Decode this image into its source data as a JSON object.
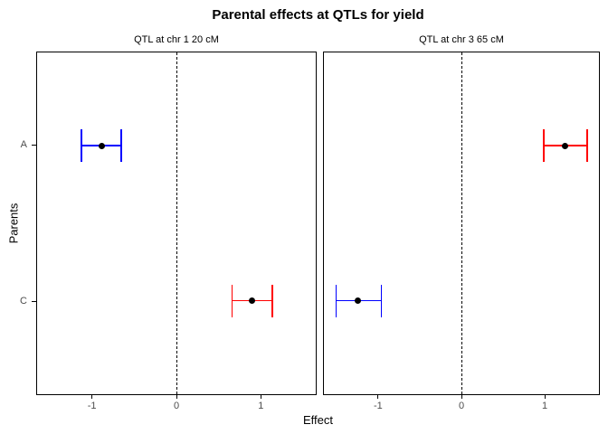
{
  "chart_data": {
    "type": "errorbar",
    "title": "Parental effects at QTLs for yield",
    "xlabel": "Effect",
    "ylabel": "Parents",
    "xlim": [
      -1.65,
      1.65
    ],
    "x_ticks": [
      -1,
      0,
      1
    ],
    "x_tick_labels": [
      "-1",
      "0",
      "1"
    ],
    "categories": [
      "A",
      "C"
    ],
    "reference_line_x": 0,
    "grid": "off",
    "legend": "none",
    "colors": {
      "blue_series": "#0000FF",
      "red_series": "#FF0000",
      "point": "#000000",
      "axis_text": "#4D4D4D",
      "panel_border": "#000000"
    },
    "panels": [
      {
        "label": "QTL at chr 1 20 cM",
        "points": [
          {
            "parent": "A",
            "effect": -0.88,
            "ci_low": -1.12,
            "ci_high": -0.65,
            "color": "#0000FF"
          },
          {
            "parent": "C",
            "effect": 0.89,
            "ci_low": 0.66,
            "ci_high": 1.14,
            "color": "#FF0000"
          }
        ]
      },
      {
        "label": "QTL at chr 3 65 cM",
        "points": [
          {
            "parent": "A",
            "effect": 1.24,
            "ci_low": 0.99,
            "ci_high": 1.51,
            "color": "#FF0000"
          },
          {
            "parent": "C",
            "effect": -1.24,
            "ci_low": -1.5,
            "ci_high": -0.96,
            "color": "#0000FF"
          }
        ]
      }
    ]
  }
}
